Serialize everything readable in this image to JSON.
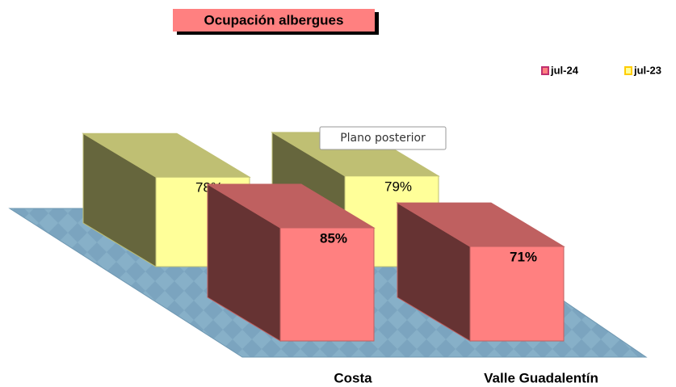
{
  "chart_data": {
    "type": "bar3d",
    "title": "Ocupación albergues",
    "categories": [
      "Costa",
      "Valle Guadalentín"
    ],
    "series": [
      {
        "name": "jul-24",
        "color": "#ff8080",
        "values": [
          85,
          71
        ],
        "value_labels": [
          "85%",
          "71%"
        ]
      },
      {
        "name": "jul-23",
        "color": "#ffff99",
        "values": [
          78,
          79
        ],
        "value_labels": [
          "78%",
          "79%"
        ]
      }
    ],
    "tooltip": "Plano posterior",
    "legend": "top-right"
  }
}
